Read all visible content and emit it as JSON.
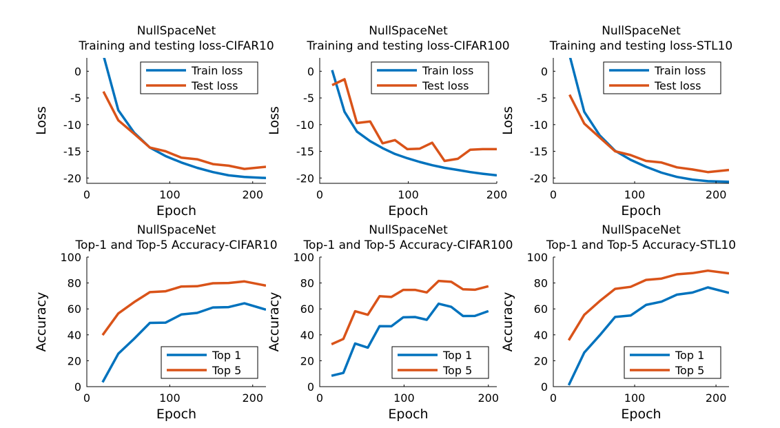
{
  "colors": {
    "blue": "#0072BD",
    "orange": "#D95319"
  },
  "chart_data": [
    {
      "type": "line",
      "title": [
        "NullSpaceNet",
        "Training and testing loss-CIFAR10"
      ],
      "xlabel": "Epoch",
      "ylabel": "Loss",
      "xlim": [
        0,
        216
      ],
      "ylim": [
        -21,
        2.5
      ],
      "xticks": [
        0,
        100,
        200
      ],
      "yticks": [
        -20,
        -15,
        -10,
        -5,
        0
      ],
      "legend": "top-right",
      "series": [
        {
          "name": "Train loss",
          "color": "blue",
          "x": [
            20,
            38,
            57,
            76,
            95,
            114,
            133,
            152,
            171,
            190,
            216
          ],
          "y": [
            3.0,
            -7.3,
            -11.5,
            -14.3,
            -15.9,
            -17.1,
            -18.1,
            -18.9,
            -19.5,
            -19.8,
            -20.0
          ]
        },
        {
          "name": "Test loss",
          "color": "orange",
          "x": [
            20,
            38,
            57,
            76,
            95,
            114,
            133,
            152,
            171,
            190,
            216
          ],
          "y": [
            -3.8,
            -9.2,
            -11.7,
            -14.3,
            -15.0,
            -16.2,
            -16.5,
            -17.4,
            -17.7,
            -18.3,
            -17.9
          ]
        }
      ]
    },
    {
      "type": "line",
      "title": [
        "NullSpaceNet",
        "Training and testing loss-CIFAR100"
      ],
      "xlabel": "Epoch",
      "ylabel": "Loss",
      "xlim": [
        0,
        200
      ],
      "ylim": [
        -21,
        2.5
      ],
      "xticks": [
        0,
        100,
        200
      ],
      "yticks": [
        -20,
        -15,
        -10,
        -5,
        0
      ],
      "legend": "top-right",
      "series": [
        {
          "name": "Train loss",
          "color": "blue",
          "x": [
            14,
            28,
            42,
            57,
            71,
            85,
            99,
            113,
            127,
            141,
            156,
            170,
            184,
            200
          ],
          "y": [
            0.2,
            -7.6,
            -11.3,
            -13.1,
            -14.4,
            -15.5,
            -16.3,
            -17.0,
            -17.6,
            -18.1,
            -18.5,
            -18.9,
            -19.2,
            -19.5
          ]
        },
        {
          "name": "Test loss",
          "color": "orange",
          "x": [
            14,
            28,
            42,
            57,
            71,
            85,
            99,
            113,
            127,
            141,
            156,
            170,
            184,
            200
          ],
          "y": [
            -2.6,
            -1.5,
            -9.7,
            -9.4,
            -13.5,
            -12.9,
            -14.6,
            -14.5,
            -13.4,
            -16.8,
            -16.4,
            -14.7,
            -14.6,
            -14.6
          ]
        }
      ]
    },
    {
      "type": "line",
      "title": [
        "NullSpaceNet",
        "Training and testing loss-STL10"
      ],
      "xlabel": "Epoch",
      "ylabel": "Loss",
      "xlim": [
        0,
        216
      ],
      "ylim": [
        -21,
        2.5
      ],
      "xticks": [
        0,
        100,
        200
      ],
      "yticks": [
        -20,
        -15,
        -10,
        -5,
        0
      ],
      "legend": "top-right",
      "series": [
        {
          "name": "Train loss",
          "color": "blue",
          "x": [
            20,
            38,
            57,
            76,
            95,
            114,
            133,
            152,
            171,
            190,
            216
          ],
          "y": [
            3.0,
            -7.6,
            -12.0,
            -14.9,
            -16.6,
            -17.9,
            -19.0,
            -19.8,
            -20.3,
            -20.6,
            -20.7
          ]
        },
        {
          "name": "Test loss",
          "color": "orange",
          "x": [
            20,
            38,
            57,
            76,
            95,
            114,
            133,
            152,
            171,
            190,
            216
          ],
          "y": [
            -4.4,
            -9.8,
            -12.4,
            -15.0,
            -15.7,
            -16.8,
            -17.1,
            -18.0,
            -18.4,
            -18.9,
            -18.5
          ]
        }
      ]
    },
    {
      "type": "line",
      "title": [
        "NullSpaceNet",
        "Top-1 and Top-5 Accuracy-CIFAR10"
      ],
      "xlabel": "Epoch",
      "ylabel": "Accuracy",
      "xlim": [
        0,
        216
      ],
      "ylim": [
        0,
        100
      ],
      "xticks": [
        0,
        100,
        200
      ],
      "yticks": [
        0,
        20,
        40,
        60,
        80,
        100
      ],
      "legend": "bottom-right",
      "series": [
        {
          "name": "Top 1",
          "color": "blue",
          "x": [
            19,
            38,
            57,
            76,
            95,
            114,
            133,
            152,
            171,
            190,
            216
          ],
          "y": [
            3.4,
            25.4,
            36.9,
            49.2,
            49.4,
            55.7,
            56.9,
            61.1,
            61.4,
            64.3,
            59.4
          ]
        },
        {
          "name": "Top 5",
          "color": "orange",
          "x": [
            19,
            38,
            57,
            76,
            95,
            114,
            133,
            152,
            171,
            190,
            216
          ],
          "y": [
            39.8,
            56.5,
            65.2,
            72.9,
            73.6,
            77.3,
            77.5,
            79.8,
            80.0,
            81.2,
            78.0
          ]
        }
      ]
    },
    {
      "type": "line",
      "title": [
        "NullSpaceNet",
        "Top-1 and Top-5 Accuracy-CIFAR100"
      ],
      "xlabel": "Epoch",
      "ylabel": "Accuracy",
      "xlim": [
        0,
        210
      ],
      "ylim": [
        0,
        100
      ],
      "xticks": [
        0,
        100,
        200
      ],
      "yticks": [
        0,
        20,
        40,
        60,
        80,
        100
      ],
      "legend": "bottom-right",
      "series": [
        {
          "name": "Top 1",
          "color": "blue",
          "x": [
            14,
            28,
            42,
            57,
            71,
            85,
            99,
            113,
            127,
            141,
            156,
            170,
            184,
            200
          ],
          "y": [
            8.4,
            10.6,
            33.3,
            30.1,
            46.7,
            46.6,
            53.5,
            53.7,
            51.6,
            64.0,
            61.6,
            54.5,
            54.6,
            58.3
          ]
        },
        {
          "name": "Top 5",
          "color": "orange",
          "x": [
            14,
            28,
            42,
            57,
            71,
            85,
            99,
            113,
            127,
            141,
            156,
            170,
            184,
            200
          ],
          "y": [
            32.7,
            36.8,
            58.2,
            55.5,
            69.8,
            69.2,
            74.7,
            74.7,
            72.7,
            81.6,
            80.9,
            75.1,
            74.8,
            77.5
          ]
        }
      ]
    },
    {
      "type": "line",
      "title": [
        "NullSpaceNet",
        "Top-1 and Top-5 Accuracy-STL10"
      ],
      "xlabel": "Epoch",
      "ylabel": "Accuracy",
      "xlim": [
        0,
        216
      ],
      "ylim": [
        0,
        100
      ],
      "xticks": [
        0,
        100,
        200
      ],
      "yticks": [
        0,
        20,
        40,
        60,
        80,
        100
      ],
      "legend": "bottom-right",
      "series": [
        {
          "name": "Top 1",
          "color": "blue",
          "x": [
            19,
            38,
            57,
            76,
            95,
            114,
            133,
            152,
            171,
            190,
            216
          ],
          "y": [
            1.1,
            26.3,
            39.6,
            53.8,
            54.9,
            63.1,
            65.6,
            71.0,
            72.6,
            76.6,
            72.4
          ]
        },
        {
          "name": "Top 5",
          "color": "orange",
          "x": [
            19,
            38,
            57,
            76,
            95,
            114,
            133,
            152,
            171,
            190,
            216
          ],
          "y": [
            35.8,
            55.4,
            66.0,
            75.5,
            77.0,
            82.4,
            83.4,
            86.7,
            87.6,
            89.5,
            87.4
          ]
        }
      ]
    }
  ]
}
